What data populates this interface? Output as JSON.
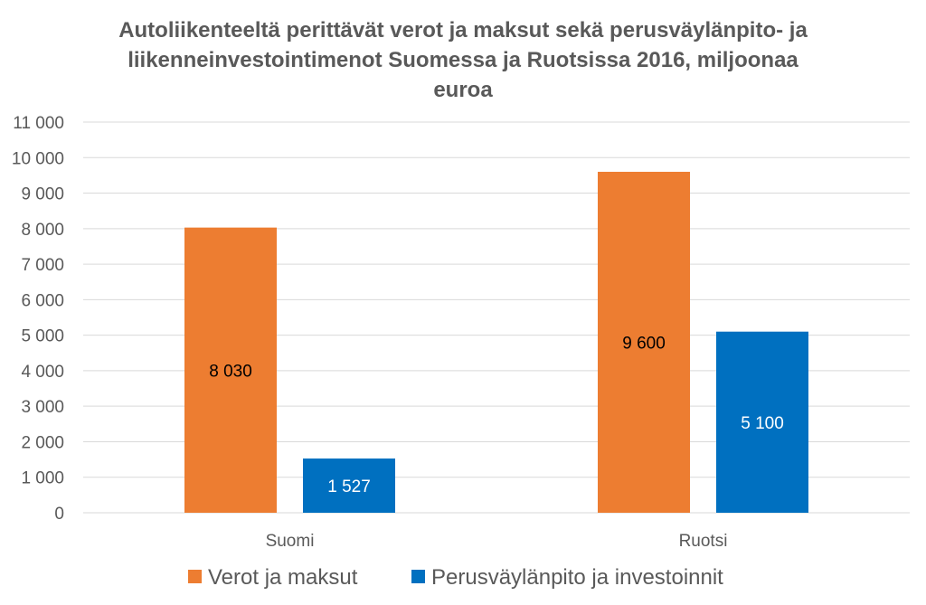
{
  "chart_data": {
    "type": "bar",
    "title": "Autoliikenteeltä perittävät verot ja maksut sekä perusväylänpito- ja liikenneinvestointimenot Suomessa ja Ruotsissa 2016, miljoonaa euroa",
    "title_lines": [
      "Autoliikenteeltä perittävät verot ja maksut sekä perusväylänpito- ja",
      "liikenneinvestointimenot Suomessa ja Ruotsissa 2016, miljoonaa",
      "euroa"
    ],
    "categories": [
      "Suomi",
      "Ruotsi"
    ],
    "series": [
      {
        "name": "Verot ja maksut",
        "values": [
          8030,
          9600
        ],
        "labels": [
          "8 030",
          "9 600"
        ],
        "color": "#ED7D31",
        "label_color": "#000000"
      },
      {
        "name": "Perusväylänpito ja investoinnit",
        "values": [
          1527,
          5100
        ],
        "labels": [
          "1 527",
          "5 100"
        ],
        "color": "#0070C0",
        "label_color": "#FFFFFF"
      }
    ],
    "ylim": [
      0,
      11000
    ],
    "yticks": [
      0,
      1000,
      2000,
      3000,
      4000,
      5000,
      6000,
      7000,
      8000,
      9000,
      10000,
      11000
    ],
    "ytick_labels": [
      "0",
      "1 000",
      "2 000",
      "3 000",
      "4 000",
      "5 000",
      "6 000",
      "7 000",
      "8 000",
      "9 000",
      "10 000",
      "11 000"
    ],
    "xlabel": "",
    "ylabel": "",
    "grid": true,
    "legend_position": "bottom",
    "colors": {
      "grid": "#D9D9D9",
      "text": "#595959"
    }
  }
}
